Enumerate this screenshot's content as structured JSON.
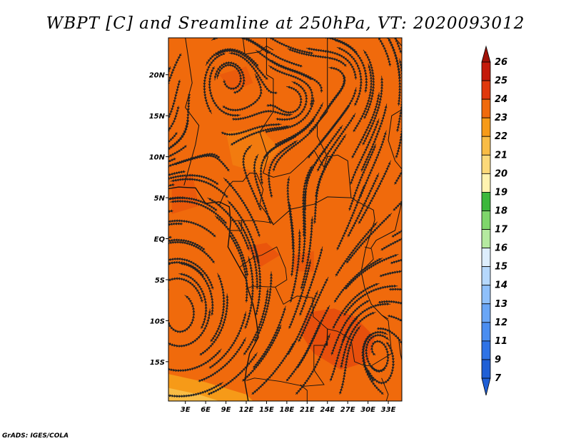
{
  "chart_data": {
    "type": "heatmap",
    "title": "WBPT [C] and Sreamline at 250hPa, VT: 2020093012",
    "variable": "Wet-bulb potential temperature (C) with streamlines, 250 hPa",
    "x_axis": {
      "ticks": [
        "3E",
        "6E",
        "9E",
        "12E",
        "15E",
        "18E",
        "21E",
        "24E",
        "27E",
        "30E",
        "33E"
      ],
      "tick_values": [
        3,
        6,
        9,
        12,
        15,
        18,
        21,
        24,
        27,
        30,
        33
      ],
      "range": [
        0.5,
        35
      ]
    },
    "y_axis": {
      "ticks": [
        "20N",
        "15N",
        "10N",
        "5N",
        "EQ",
        "5S",
        "10S",
        "15S"
      ],
      "tick_values": [
        20,
        15,
        10,
        5,
        0,
        -5,
        -10,
        -15
      ],
      "range": [
        -19.8,
        24.5
      ]
    },
    "colorbar": {
      "labels": [
        "7",
        "9",
        "11",
        "12",
        "13",
        "14",
        "15",
        "16",
        "17",
        "18",
        "19",
        "20",
        "21",
        "22",
        "23",
        "24",
        "25",
        "26"
      ],
      "colors": [
        "#1f5fd6",
        "#2f73e6",
        "#4a8df0",
        "#6aa6f6",
        "#8fc0fa",
        "#b6d8fc",
        "#ddeefd",
        "#b5eaa0",
        "#7fd66b",
        "#3cb83c",
        "#fff3b0",
        "#fcd97a",
        "#f9bc45",
        "#f69a18",
        "#f06a0c",
        "#e0380c",
        "#c41a0a",
        "#a01208"
      ],
      "extend": "both"
    },
    "field_summary": {
      "dominant_range": "23-24",
      "bands": [
        {
          "region": "north / central",
          "value_range": "23-24"
        },
        {
          "region": "southwest corner",
          "value_range": "21-22"
        },
        {
          "region": "southern Zambia-Mozambique area",
          "value_range": "24-25"
        }
      ]
    },
    "streamline_features": [
      "anticyclonic gyre near 10E 20N",
      "cyclonic circulation near 30E 13S",
      "large anticyclonic curvature over southern Atlantic"
    ]
  },
  "credit": "GrADS: IGES/COLA",
  "colors": {
    "field_main": "#f06a0c",
    "field_warm": "#e0380c",
    "field_cool": "#f69a18",
    "background": "#ffffff"
  }
}
